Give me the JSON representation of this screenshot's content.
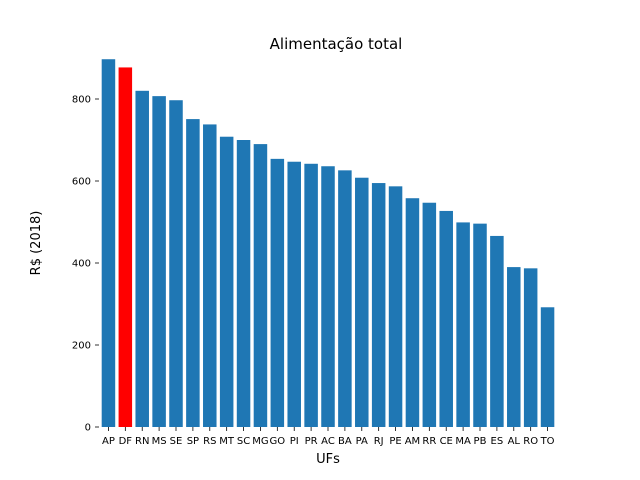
{
  "chart_data": {
    "type": "bar",
    "title": "Alimentação total",
    "xlabel": "UFs",
    "ylabel": "R$ (2018)",
    "ylim": [
      0,
      900
    ],
    "yticks": [
      0,
      200,
      400,
      600,
      800
    ],
    "grid": false,
    "categories": [
      "AP",
      "DF",
      "RN",
      "MS",
      "SE",
      "SP",
      "RS",
      "MT",
      "SC",
      "MG",
      "GO",
      "PI",
      "PR",
      "AC",
      "BA",
      "PA",
      "RJ",
      "PE",
      "AM",
      "RR",
      "CE",
      "MA",
      "PB",
      "ES",
      "AL",
      "RO",
      "TO"
    ],
    "values": [
      897,
      877,
      820,
      807,
      797,
      751,
      738,
      708,
      700,
      690,
      654,
      647,
      642,
      636,
      626,
      608,
      595,
      587,
      558,
      547,
      527,
      499,
      496,
      466,
      390,
      387,
      292
    ],
    "colors": {
      "default": "#1f77b4",
      "highlight": "#ff0000"
    },
    "highlight_category": "DF"
  }
}
